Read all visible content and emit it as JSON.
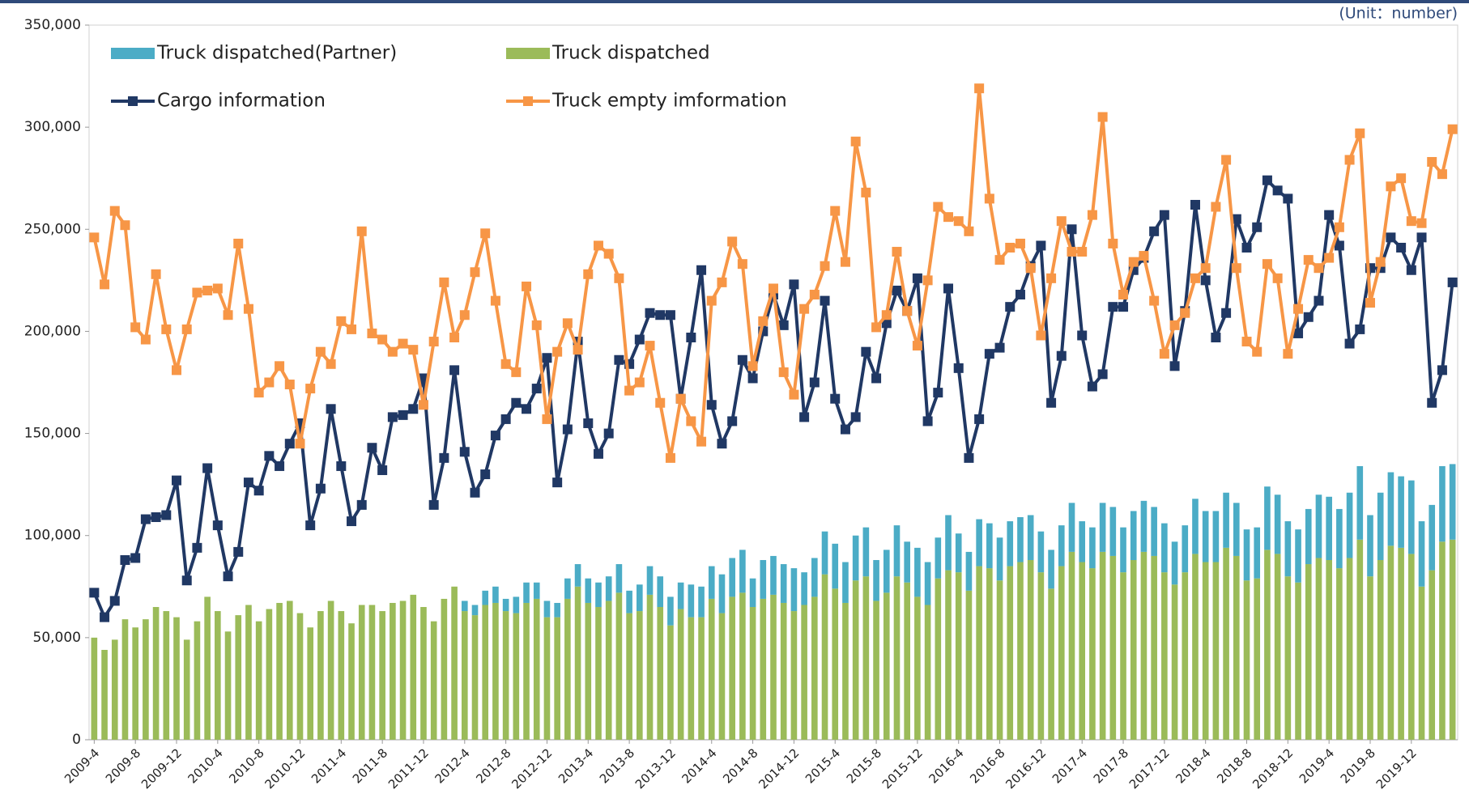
{
  "chart_data": {
    "type": "bar",
    "annotation": "(Unit：number)",
    "categories": [
      "2009-4",
      null,
      null,
      null,
      "2009-8",
      null,
      null,
      null,
      "2009-12",
      null,
      null,
      null,
      "2010-4",
      null,
      null,
      null,
      "2010-8",
      null,
      null,
      null,
      "2010-12",
      null,
      null,
      null,
      "2011-4",
      null,
      null,
      null,
      "2011-8",
      null,
      null,
      null,
      "2011-12",
      null,
      null,
      null,
      "2012-4",
      null,
      null,
      null,
      "2012-8",
      null,
      null,
      null,
      "2012-12",
      null,
      null,
      null,
      "2013-4",
      null,
      null,
      null,
      "2013-8",
      null,
      null,
      null,
      "2013-12",
      null,
      null,
      null,
      "2014-4",
      null,
      null,
      null,
      "2014-8",
      null,
      null,
      null,
      "2014-12",
      null,
      null,
      null,
      "2015-4",
      null,
      null,
      null,
      "2015-8",
      null,
      null,
      null,
      "2015-12",
      null,
      null,
      null,
      "2016-4",
      null,
      null,
      null,
      "2016-8",
      null,
      null,
      null,
      "2016-12",
      null,
      null,
      null,
      "2017-4",
      null,
      null,
      null,
      "2017-8",
      null,
      null,
      null,
      "2017-12",
      null,
      null,
      null,
      "2018-4",
      null,
      null,
      null,
      "2018-8",
      null,
      null,
      null,
      "2018-12",
      null,
      null,
      null,
      "2019-4",
      null,
      null,
      null,
      "2019-8",
      null,
      null,
      null,
      "2019-12",
      null,
      null,
      null,
      null
    ],
    "series": [
      {
        "name": "Truck dispatched(Partner)",
        "type": "bar",
        "color": "#4bacc6",
        "values": [
          null,
          null,
          null,
          null,
          null,
          null,
          null,
          null,
          null,
          null,
          null,
          null,
          null,
          null,
          null,
          null,
          null,
          null,
          null,
          null,
          null,
          null,
          null,
          null,
          null,
          null,
          null,
          null,
          null,
          null,
          null,
          null,
          null,
          null,
          null,
          null,
          5000,
          5000,
          7000,
          8000,
          6000,
          8000,
          10000,
          8000,
          8000,
          7000,
          10000,
          11000,
          12000,
          12000,
          12000,
          14000,
          11000,
          13000,
          14000,
          15000,
          14000,
          13000,
          16000,
          15000,
          16000,
          19000,
          19000,
          21000,
          14000,
          19000,
          19000,
          19000,
          21000,
          16000,
          19000,
          21000,
          22000,
          20000,
          22000,
          24000,
          20000,
          21000,
          25000,
          20000,
          24000,
          21000,
          20000,
          27000,
          19000,
          19000,
          23000,
          22000,
          21000,
          22000,
          22000,
          22000,
          20000,
          19000,
          20000,
          24000,
          20000,
          20000,
          24000,
          24000,
          22000,
          24000,
          25000,
          24000,
          24000,
          21000,
          23000,
          27000,
          25000,
          25000,
          27000,
          26000,
          25000,
          25000,
          31000,
          29000,
          27000,
          26000,
          27000,
          31000,
          31000,
          29000,
          32000,
          36000,
          30000,
          33000,
          36000,
          35000,
          36000,
          32000,
          32000,
          37000,
          37000
        ]
      },
      {
        "name": "Truck dispatched",
        "type": "bar",
        "color": "#9bbb59",
        "values": [
          50000,
          44000,
          49000,
          59000,
          55000,
          59000,
          65000,
          63000,
          60000,
          49000,
          58000,
          70000,
          63000,
          53000,
          61000,
          66000,
          58000,
          64000,
          67000,
          68000,
          62000,
          55000,
          63000,
          68000,
          63000,
          57000,
          66000,
          66000,
          63000,
          67000,
          68000,
          71000,
          65000,
          58000,
          69000,
          75000,
          63000,
          61000,
          66000,
          67000,
          63000,
          62000,
          67000,
          69000,
          60000,
          60000,
          69000,
          75000,
          67000,
          65000,
          68000,
          72000,
          62000,
          63000,
          71000,
          65000,
          56000,
          64000,
          60000,
          60000,
          69000,
          62000,
          70000,
          72000,
          65000,
          69000,
          71000,
          67000,
          63000,
          66000,
          70000,
          81000,
          74000,
          67000,
          78000,
          80000,
          68000,
          72000,
          80000,
          77000,
          70000,
          66000,
          79000,
          83000,
          82000,
          73000,
          85000,
          84000,
          78000,
          85000,
          87000,
          88000,
          82000,
          74000,
          85000,
          92000,
          87000,
          84000,
          92000,
          90000,
          82000,
          88000,
          92000,
          90000,
          82000,
          76000,
          82000,
          91000,
          87000,
          87000,
          94000,
          90000,
          78000,
          79000,
          93000,
          91000,
          80000,
          77000,
          86000,
          89000,
          88000,
          84000,
          89000,
          98000,
          80000,
          88000,
          95000,
          94000,
          91000,
          75000,
          83000,
          97000,
          98000
        ]
      },
      {
        "name": "Cargo information",
        "type": "line",
        "color": "#203864",
        "values": [
          72000,
          60000,
          68000,
          88000,
          89000,
          108000,
          109000,
          110000,
          127000,
          78000,
          94000,
          133000,
          105000,
          80000,
          92000,
          126000,
          122000,
          139000,
          134000,
          145000,
          155000,
          105000,
          123000,
          162000,
          134000,
          107000,
          115000,
          143000,
          132000,
          158000,
          159000,
          162000,
          177000,
          115000,
          138000,
          181000,
          141000,
          121000,
          130000,
          149000,
          157000,
          165000,
          162000,
          172000,
          187000,
          126000,
          152000,
          195000,
          155000,
          140000,
          150000,
          186000,
          184000,
          196000,
          209000,
          208000,
          208000,
          167000,
          197000,
          230000,
          164000,
          145000,
          156000,
          186000,
          177000,
          200000,
          218000,
          203000,
          223000,
          158000,
          175000,
          215000,
          167000,
          152000,
          158000,
          190000,
          177000,
          204000,
          220000,
          210000,
          226000,
          156000,
          170000,
          221000,
          182000,
          138000,
          157000,
          189000,
          192000,
          212000,
          218000,
          232000,
          242000,
          165000,
          188000,
          250000,
          198000,
          173000,
          179000,
          212000,
          212000,
          230000,
          236000,
          249000,
          257000,
          183000,
          210000,
          262000,
          225000,
          197000,
          209000,
          255000,
          241000,
          251000,
          274000,
          269000,
          265000,
          199000,
          207000,
          215000,
          257000,
          242000,
          194000,
          201000,
          231000,
          231000,
          246000,
          241000,
          230000,
          246000,
          165000,
          181000,
          224000
        ]
      },
      {
        "name": "Truck empty imformation",
        "type": "line",
        "color": "#f79646",
        "values": [
          246000,
          223000,
          259000,
          252000,
          202000,
          196000,
          228000,
          201000,
          181000,
          201000,
          219000,
          220000,
          221000,
          208000,
          243000,
          211000,
          170000,
          175000,
          183000,
          174000,
          145000,
          172000,
          190000,
          184000,
          205000,
          201000,
          249000,
          199000,
          196000,
          190000,
          194000,
          191000,
          164000,
          195000,
          224000,
          197000,
          208000,
          229000,
          248000,
          215000,
          184000,
          180000,
          222000,
          203000,
          157000,
          190000,
          204000,
          191000,
          228000,
          242000,
          238000,
          226000,
          171000,
          175000,
          193000,
          165000,
          138000,
          167000,
          156000,
          146000,
          215000,
          224000,
          244000,
          233000,
          183000,
          205000,
          221000,
          180000,
          169000,
          211000,
          218000,
          232000,
          259000,
          234000,
          293000,
          268000,
          202000,
          208000,
          239000,
          210000,
          193000,
          225000,
          261000,
          256000,
          254000,
          249000,
          319000,
          265000,
          235000,
          241000,
          243000,
          231000,
          198000,
          226000,
          254000,
          239000,
          239000,
          257000,
          305000,
          243000,
          218000,
          234000,
          237000,
          215000,
          189000,
          203000,
          209000,
          226000,
          231000,
          261000,
          284000,
          231000,
          195000,
          190000,
          233000,
          226000,
          189000,
          211000,
          235000,
          231000,
          236000,
          251000,
          284000,
          297000,
          214000,
          234000,
          271000,
          275000,
          254000,
          253000,
          283000,
          277000,
          299000
        ]
      }
    ],
    "stacked": true,
    "ylim": [
      0,
      350000
    ],
    "yticks": [
      0,
      {
        "value": 50000,
        "label": "50,000"
      },
      {
        "value": 100000,
        "label": "100,000"
      },
      {
        "value": 150000,
        "label": "150,000"
      },
      {
        "value": 200000,
        "label": "200,000"
      },
      {
        "value": 250000,
        "label": "250,000"
      },
      {
        "value": 300000,
        "label": "300,000"
      },
      {
        "value": 350000,
        "label": "350,000"
      }
    ],
    "legend": "top-left"
  }
}
